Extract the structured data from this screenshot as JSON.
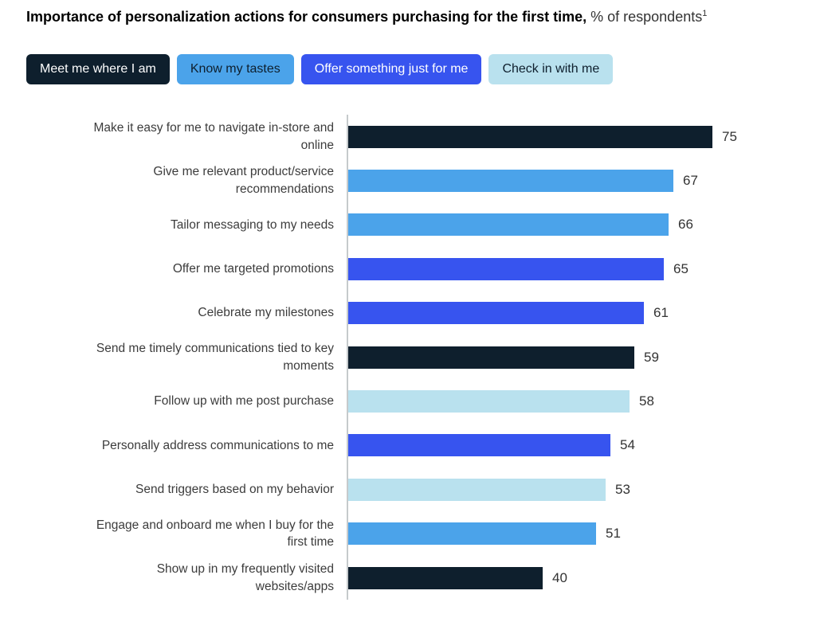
{
  "title": {
    "bold": "Importance of personalization actions for consumers purchasing for the first time,",
    "regular": "% of respondents",
    "superscript": "1"
  },
  "legend": [
    {
      "label": "Meet me where I am",
      "color": "#0e1f2d",
      "text_color": "#ffffff"
    },
    {
      "label": "Know my tastes",
      "color": "#4ba3ea",
      "text_color": "#0e1f2d"
    },
    {
      "label": "Offer something just for me",
      "color": "#3754ef",
      "text_color": "#ffffff"
    },
    {
      "label": "Check in with me",
      "color": "#b9e1ee",
      "text_color": "#0e1f2d"
    }
  ],
  "chart_data": {
    "type": "bar",
    "orientation": "horizontal",
    "title": "Importance of personalization actions for consumers purchasing for the first time, % of respondents",
    "unit": "% of respondents",
    "xlim": [
      0,
      80
    ],
    "grid": false,
    "legend_position": "top",
    "category_colors": {
      "Meet me where I am": "#0e1f2d",
      "Know my tastes": "#4ba3ea",
      "Offer something just for me": "#3754ef",
      "Check in with me": "#b9e1ee"
    },
    "bars": [
      {
        "label": "Make it easy for me to navigate in-store and online",
        "value": 75,
        "category": "Meet me where I am"
      },
      {
        "label": "Give me relevant product/service recommendations",
        "value": 67,
        "category": "Know my tastes"
      },
      {
        "label": "Tailor messaging to my needs",
        "value": 66,
        "category": "Know my tastes"
      },
      {
        "label": "Offer me targeted promotions",
        "value": 65,
        "category": "Offer something just for me"
      },
      {
        "label": "Celebrate my milestones",
        "value": 61,
        "category": "Offer something just for me"
      },
      {
        "label": "Send me timely communications tied to key moments",
        "value": 59,
        "category": "Meet me where I am"
      },
      {
        "label": "Follow up with me post purchase",
        "value": 58,
        "category": "Check in with me"
      },
      {
        "label": "Personally address communications to me",
        "value": 54,
        "category": "Offer something just for me"
      },
      {
        "label": "Send triggers based on my behavior",
        "value": 53,
        "category": "Check in with me"
      },
      {
        "label": "Engage and onboard me when I buy for the first time",
        "value": 51,
        "category": "Know my tastes"
      },
      {
        "label": "Show up in my frequently visited websites/apps",
        "value": 40,
        "category": "Meet me where I am"
      }
    ]
  }
}
